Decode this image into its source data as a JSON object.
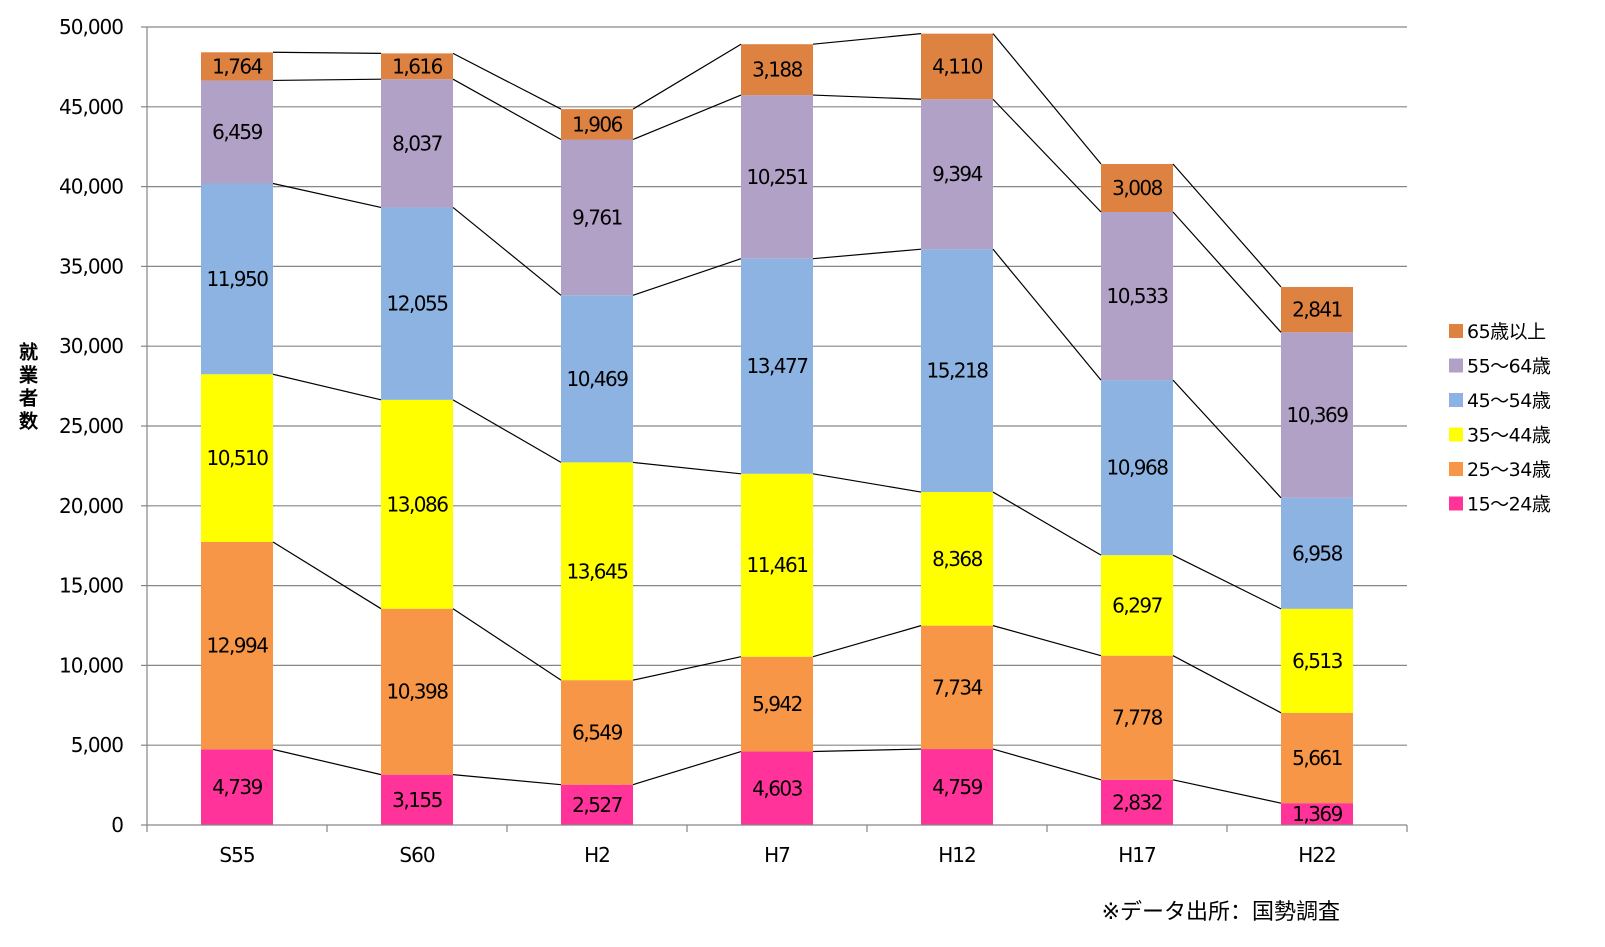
{
  "chart_data": {
    "type": "bar",
    "stacked": true,
    "categories": [
      "S55",
      "S60",
      "H2",
      "H7",
      "H12",
      "H17",
      "H22"
    ],
    "ylabel": "就業者数",
    "ylim": [
      0,
      50000
    ],
    "y_ticks": [
      "0",
      "5,000",
      "10,000",
      "15,000",
      "20,000",
      "25,000",
      "30,000",
      "35,000",
      "40,000",
      "45,000",
      "50,000"
    ],
    "grid": true,
    "legend_position": "right",
    "series_connector_lines": true,
    "series": [
      {
        "name": "15～24歳",
        "color": "#ff3399",
        "values": [
          4739,
          3155,
          2527,
          4603,
          4759,
          2832,
          1369
        ],
        "labels": [
          "4,739",
          "3,155",
          "2,527",
          "4,603",
          "4,759",
          "2,832",
          "1,369"
        ]
      },
      {
        "name": "25～34歳",
        "color": "#f79646",
        "values": [
          12994,
          10398,
          6549,
          5942,
          7734,
          7778,
          5661
        ],
        "labels": [
          "12,994",
          "10,398",
          "6,549",
          "5,942",
          "7,734",
          "7,778",
          "5,661"
        ]
      },
      {
        "name": "35～44歳",
        "color": "#ffff00",
        "values": [
          10510,
          13086,
          13645,
          11461,
          8368,
          6297,
          6513
        ],
        "labels": [
          "10,510",
          "13,086",
          "13,645",
          "11,461",
          "8,368",
          "6,297",
          "6,513"
        ]
      },
      {
        "name": "45～54歳",
        "color": "#8db3e2",
        "values": [
          11950,
          12055,
          10469,
          13477,
          15218,
          10968,
          6958
        ],
        "labels": [
          "11,950",
          "12,055",
          "10,469",
          "13,477",
          "15,218",
          "10,968",
          "6,958"
        ]
      },
      {
        "name": "55～64歳",
        "color": "#b2a1c7",
        "values": [
          6459,
          8037,
          9761,
          10251,
          9394,
          10533,
          10369
        ],
        "labels": [
          "6,459",
          "8,037",
          "9,761",
          "10,251",
          "9,394",
          "10,533",
          "10,369"
        ]
      },
      {
        "name": "65歳以上",
        "color": "#dd8240",
        "values": [
          1764,
          1616,
          1906,
          3188,
          4110,
          3008,
          2841
        ],
        "labels": [
          "1,764",
          "1,616",
          "1,906",
          "3,188",
          "4,110",
          "3,008",
          "2,841"
        ]
      }
    ],
    "legend_labels": [
      "65歳以上",
      "55～64歳",
      "45～54歳",
      "35～44歳",
      "25～34歳",
      "15～24歳"
    ],
    "source_note": "※データ出所：国勢調査"
  }
}
